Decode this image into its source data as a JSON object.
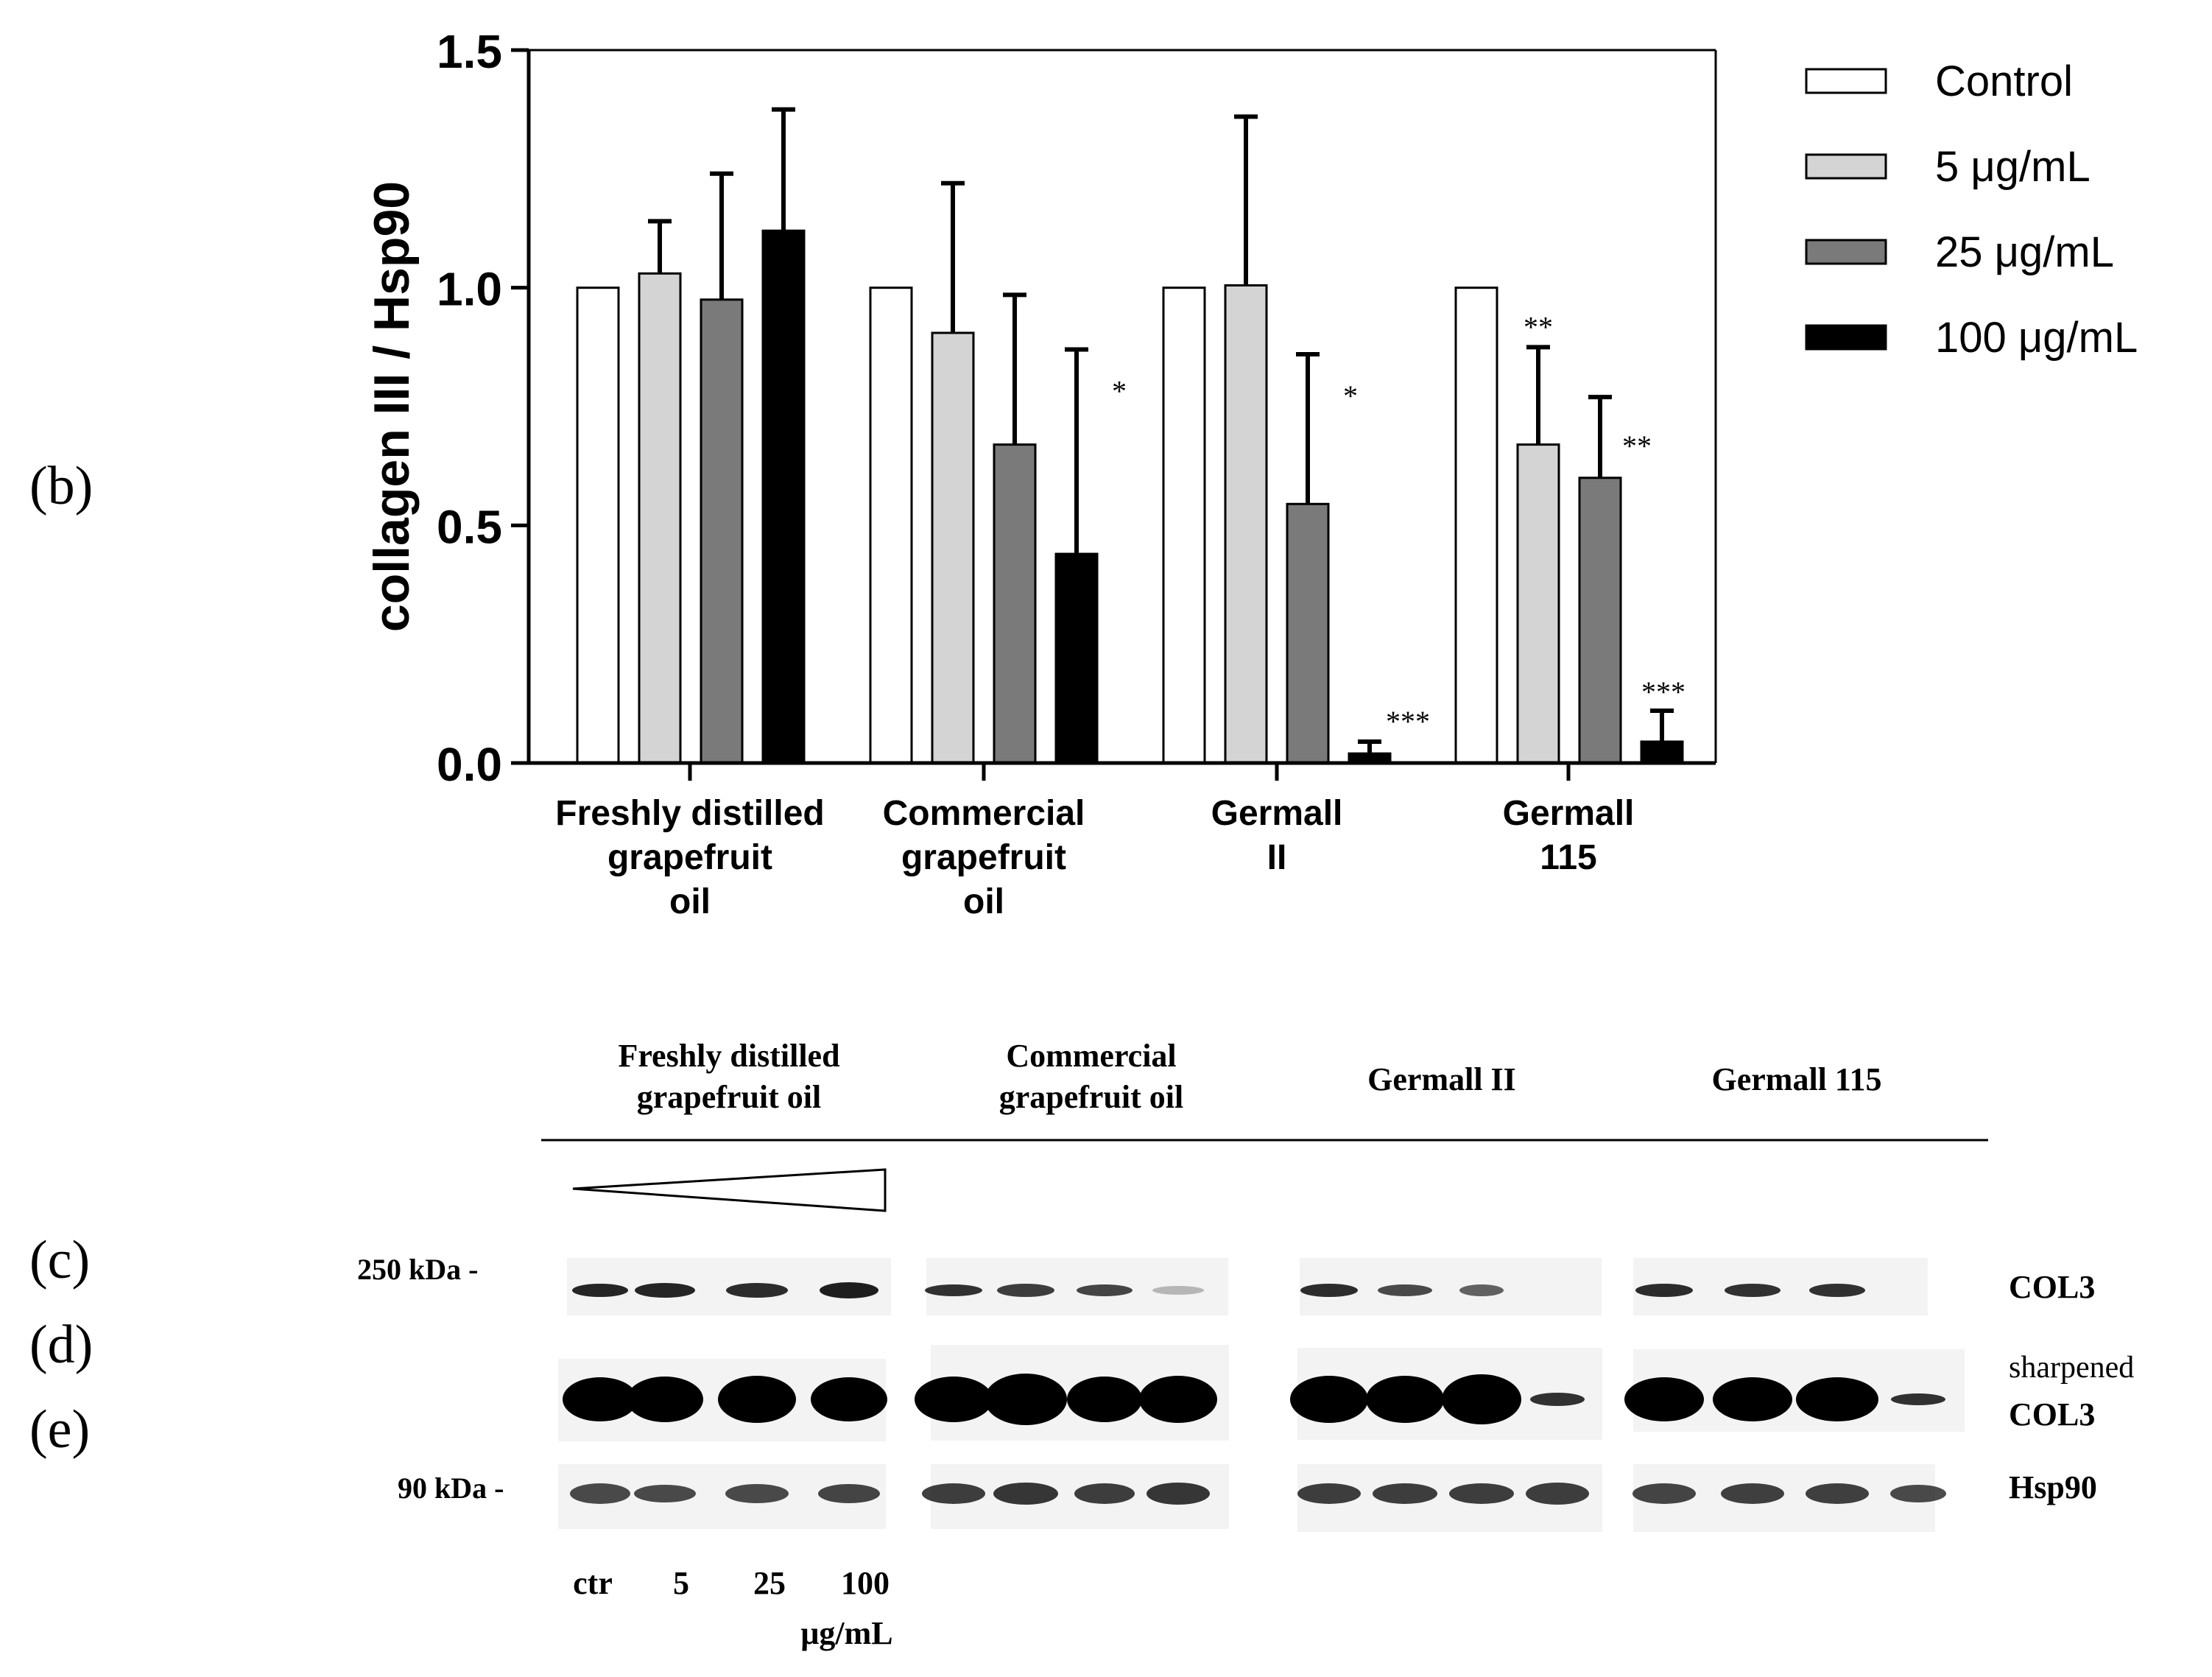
{
  "panel_labels": {
    "b": "(b)",
    "c": "(c)",
    "d": "(d)",
    "e": "(e)"
  },
  "chart_data": {
    "type": "bar",
    "ylabel": "collagen III / Hsp90",
    "ylim": [
      0,
      1.5
    ],
    "yticks": [
      "0.0",
      "0.5",
      "1.0",
      "1.5"
    ],
    "categories": [
      [
        "Freshly distilled",
        "grapefruit",
        "oil"
      ],
      [
        "Commercial",
        "grapefruit",
        "oil"
      ],
      [
        "Germall",
        "II"
      ],
      [
        "Germall",
        "115"
      ]
    ],
    "series": [
      {
        "name": "Control",
        "color": "#ffffff",
        "values": [
          1.0,
          1.0,
          1.0,
          1.0
        ],
        "errors": [
          0,
          0,
          0,
          0
        ],
        "significance": [
          "",
          "",
          "",
          ""
        ]
      },
      {
        "name": "5 μg/mL",
        "color": "#d4d4d4",
        "values": [
          1.03,
          0.905,
          1.005,
          0.67
        ],
        "errors": [
          0.11,
          0.315,
          0.355,
          0.205
        ],
        "significance": [
          "",
          "",
          "",
          "**"
        ]
      },
      {
        "name": "25 μg/mL",
        "color": "#7a7a7a",
        "values": [
          0.975,
          0.67,
          0.545,
          0.6
        ],
        "errors": [
          0.265,
          0.315,
          0.315,
          0.17
        ],
        "significance": [
          "",
          "",
          "*",
          "**"
        ]
      },
      {
        "name": "100 μg/mL",
        "color": "#000000",
        "values": [
          1.12,
          0.44,
          0.02,
          0.045
        ],
        "errors": [
          0.255,
          0.43,
          0.025,
          0.065
        ],
        "significance": [
          "",
          "*",
          "***",
          "***"
        ]
      }
    ],
    "legend_position": "right"
  },
  "blot": {
    "groups": [
      [
        "Freshly distilled",
        "grapefruit oil"
      ],
      [
        "Commercial",
        "grapefruit oil"
      ],
      [
        "Germall II"
      ],
      [
        "Germall 115"
      ]
    ],
    "markers": {
      "top": "250 kDa -",
      "bottom": "90 kDa -"
    },
    "row_labels": {
      "col3": "COL3",
      "sharp1": "sharpened",
      "sharp2": "COL3",
      "hsp": "Hsp90"
    },
    "lane_labels": [
      "ctr",
      "5",
      "25",
      "100"
    ],
    "unit": "μg/mL"
  }
}
